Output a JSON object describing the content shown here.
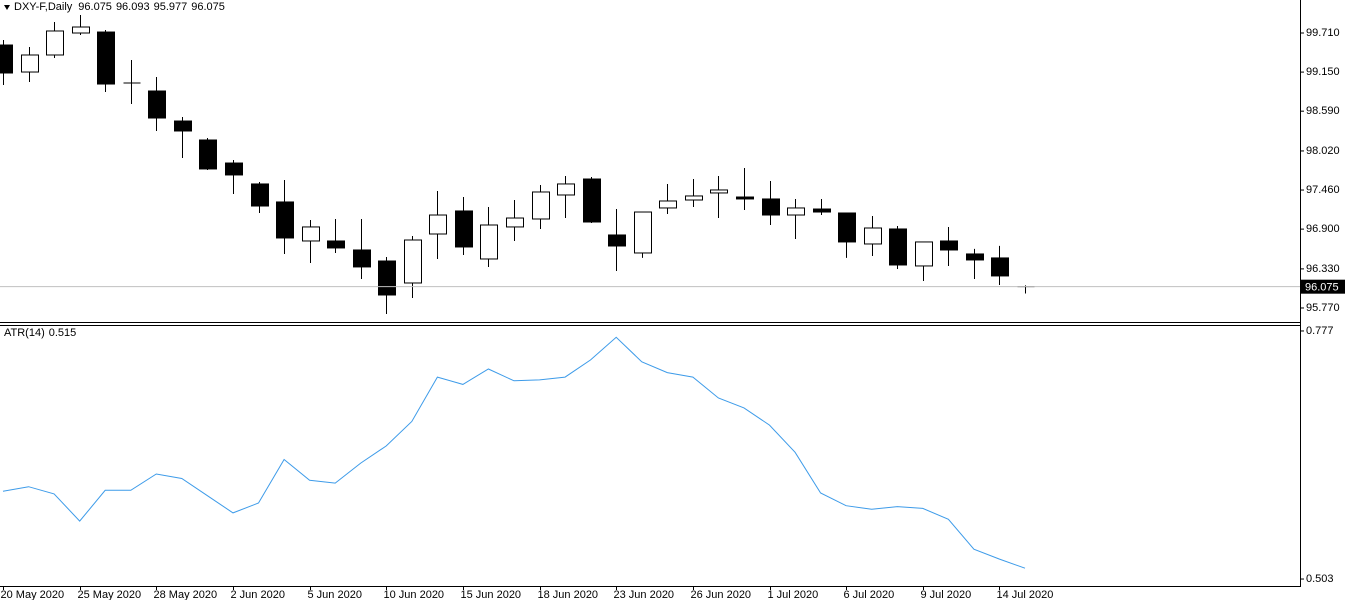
{
  "chart_data": [
    {
      "type": "candlestick",
      "title": "DXY-F,Daily",
      "categories": [
        "20 May 2020",
        null,
        null,
        "25 May 2020",
        null,
        null,
        "28 May 2020",
        null,
        null,
        "2 Jun 2020",
        null,
        null,
        "5 Jun 2020",
        null,
        null,
        "10 Jun 2020",
        null,
        null,
        "15 Jun 2020",
        null,
        null,
        "18 Jun 2020",
        null,
        null,
        "23 Jun 2020",
        null,
        null,
        "26 Jun 2020",
        null,
        null,
        "1 Jul 2020",
        null,
        null,
        "6 Jul 2020",
        null,
        null,
        "9 Jul 2020",
        null,
        null,
        "14 Jul 2020",
        null
      ],
      "open": [
        99.538,
        99.151,
        99.395,
        99.71,
        99.724,
        98.994,
        98.879,
        98.449,
        98.177,
        97.847,
        97.547,
        97.289,
        96.73,
        96.73,
        96.601,
        96.443,
        96.128,
        96.83,
        97.16,
        96.472,
        96.931,
        97.045,
        97.389,
        97.618,
        96.816,
        96.558,
        97.203,
        97.317,
        97.418,
        97.36,
        97.332,
        97.102,
        97.188,
        97.131,
        96.687,
        96.902,
        96.372,
        96.73,
        96.544,
        96.487,
        96.075
      ],
      "high": [
        99.61,
        99.509,
        99.868,
        99.968,
        99.753,
        99.323,
        99.08,
        98.507,
        98.206,
        97.89,
        97.575,
        97.604,
        97.031,
        97.045,
        97.045,
        96.501,
        96.802,
        97.446,
        97.36,
        97.217,
        97.317,
        97.532,
        97.661,
        97.647,
        97.188,
        97.145,
        97.547,
        97.618,
        97.661,
        97.776,
        97.59,
        97.332,
        97.332,
        97.131,
        97.088,
        96.945,
        96.716,
        96.931,
        96.616,
        96.659,
        96.093
      ],
      "low": [
        98.965,
        99.008,
        99.352,
        99.681,
        98.865,
        98.693,
        98.306,
        97.919,
        97.747,
        97.403,
        97.131,
        96.544,
        96.415,
        96.558,
        96.186,
        95.684,
        95.913,
        96.472,
        96.529,
        96.358,
        96.73,
        96.902,
        97.059,
        96.988,
        96.3,
        96.487,
        97.117,
        97.217,
        97.059,
        97.174,
        96.959,
        96.759,
        97.102,
        96.487,
        96.515,
        96.329,
        96.157,
        96.372,
        96.186,
        96.1,
        95.977
      ],
      "close": [
        99.137,
        99.395,
        99.739,
        99.796,
        98.979,
        98.98,
        98.492,
        98.306,
        97.762,
        97.676,
        97.231,
        96.773,
        96.931,
        96.63,
        96.358,
        95.956,
        96.744,
        97.102,
        96.644,
        96.959,
        97.059,
        97.432,
        97.547,
        97.002,
        96.658,
        97.145,
        97.303,
        97.375,
        97.461,
        97.332,
        97.102,
        97.203,
        97.145,
        96.716,
        96.916,
        96.386,
        96.716,
        96.601,
        96.458,
        96.229,
        96.075
      ],
      "up_color": "#ffffff",
      "down_color": "#000000",
      "ylim": [
        95.569,
        100.183
      ],
      "yticks": [
        {
          "value": 95.77,
          "label": "95.770"
        },
        {
          "value": 96.33,
          "label": "96.330"
        },
        {
          "value": 96.9,
          "label": "96.900"
        },
        {
          "value": 97.46,
          "label": "97.460"
        },
        {
          "value": 98.02,
          "label": "98.020"
        },
        {
          "value": 98.59,
          "label": "98.590"
        },
        {
          "value": 99.15,
          "label": "99.150"
        },
        {
          "value": 99.71,
          "label": "99.710"
        }
      ]
    },
    {
      "type": "line",
      "title": "ATR(14)",
      "color": "#3d9be9",
      "values": [
        0.6,
        0.605,
        0.597,
        0.567,
        0.601,
        0.601,
        0.619,
        0.614,
        0.595,
        0.576,
        0.587,
        0.635,
        0.612,
        0.609,
        0.631,
        0.65,
        0.677,
        0.726,
        0.718,
        0.735,
        0.722,
        0.723,
        0.726,
        0.745,
        0.77,
        0.743,
        0.731,
        0.726,
        0.703,
        0.692,
        0.673,
        0.643,
        0.598,
        0.584,
        0.58,
        0.583,
        0.581,
        0.569,
        0.536,
        0.525,
        0.515
      ],
      "ylim": [
        0.4953,
        0.7847
      ],
      "yticks": [
        0.503,
        0.777
      ]
    }
  ]
}
